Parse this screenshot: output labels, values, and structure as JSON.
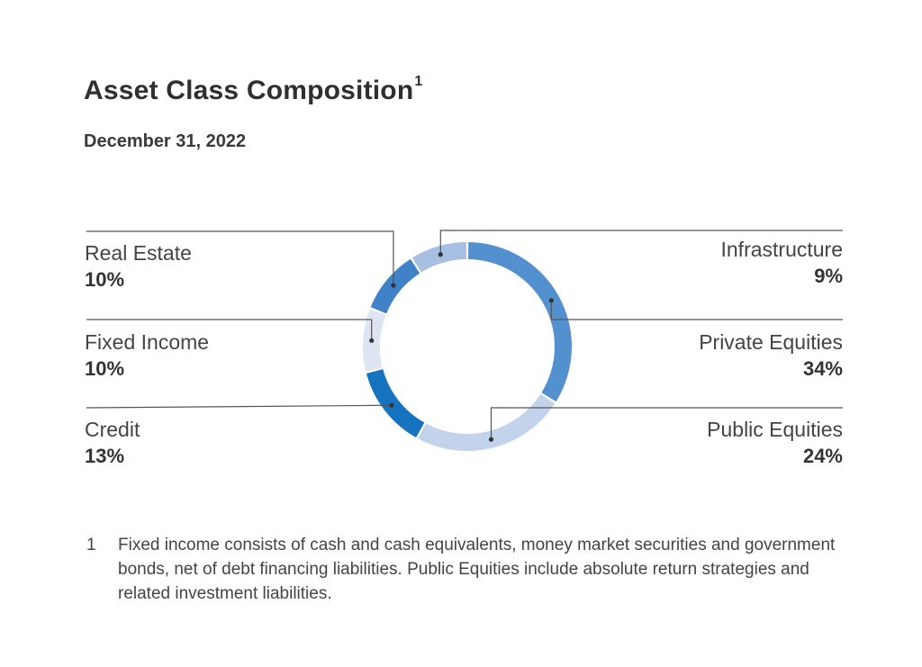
{
  "title": "Asset Class Composition",
  "title_footnote_marker": "1",
  "subtitle": "December 31, 2022",
  "chart_data": {
    "type": "pie",
    "style": "donut",
    "title": "Asset Class Composition",
    "subtitle": "December 31, 2022",
    "slices": [
      {
        "label": "Private Equities",
        "value": 34,
        "display": "34%",
        "color": "#5390d0",
        "side": "right"
      },
      {
        "label": "Public Equities",
        "value": 24,
        "display": "24%",
        "color": "#c3d3ec",
        "side": "right"
      },
      {
        "label": "Credit",
        "value": 13,
        "display": "13%",
        "color": "#1673bf",
        "side": "left"
      },
      {
        "label": "Fixed Income",
        "value": 10,
        "display": "10%",
        "color": "#dde5f3",
        "side": "left"
      },
      {
        "label": "Real Estate",
        "value": 10,
        "display": "10%",
        "color": "#3f82c8",
        "side": "left"
      },
      {
        "label": "Infrastructure",
        "value": 9,
        "display": "9%",
        "color": "#a6bfe3",
        "side": "right"
      }
    ],
    "start_angle_deg": 0,
    "direction": "clockwise",
    "legend": "callout labels"
  },
  "footnote": {
    "number": "1",
    "text": "Fixed income consists of cash and cash equivalents, money market securities and government bonds, net of debt financing liabilities. Public Equities include absolute return strategies and related investment liabilities."
  }
}
